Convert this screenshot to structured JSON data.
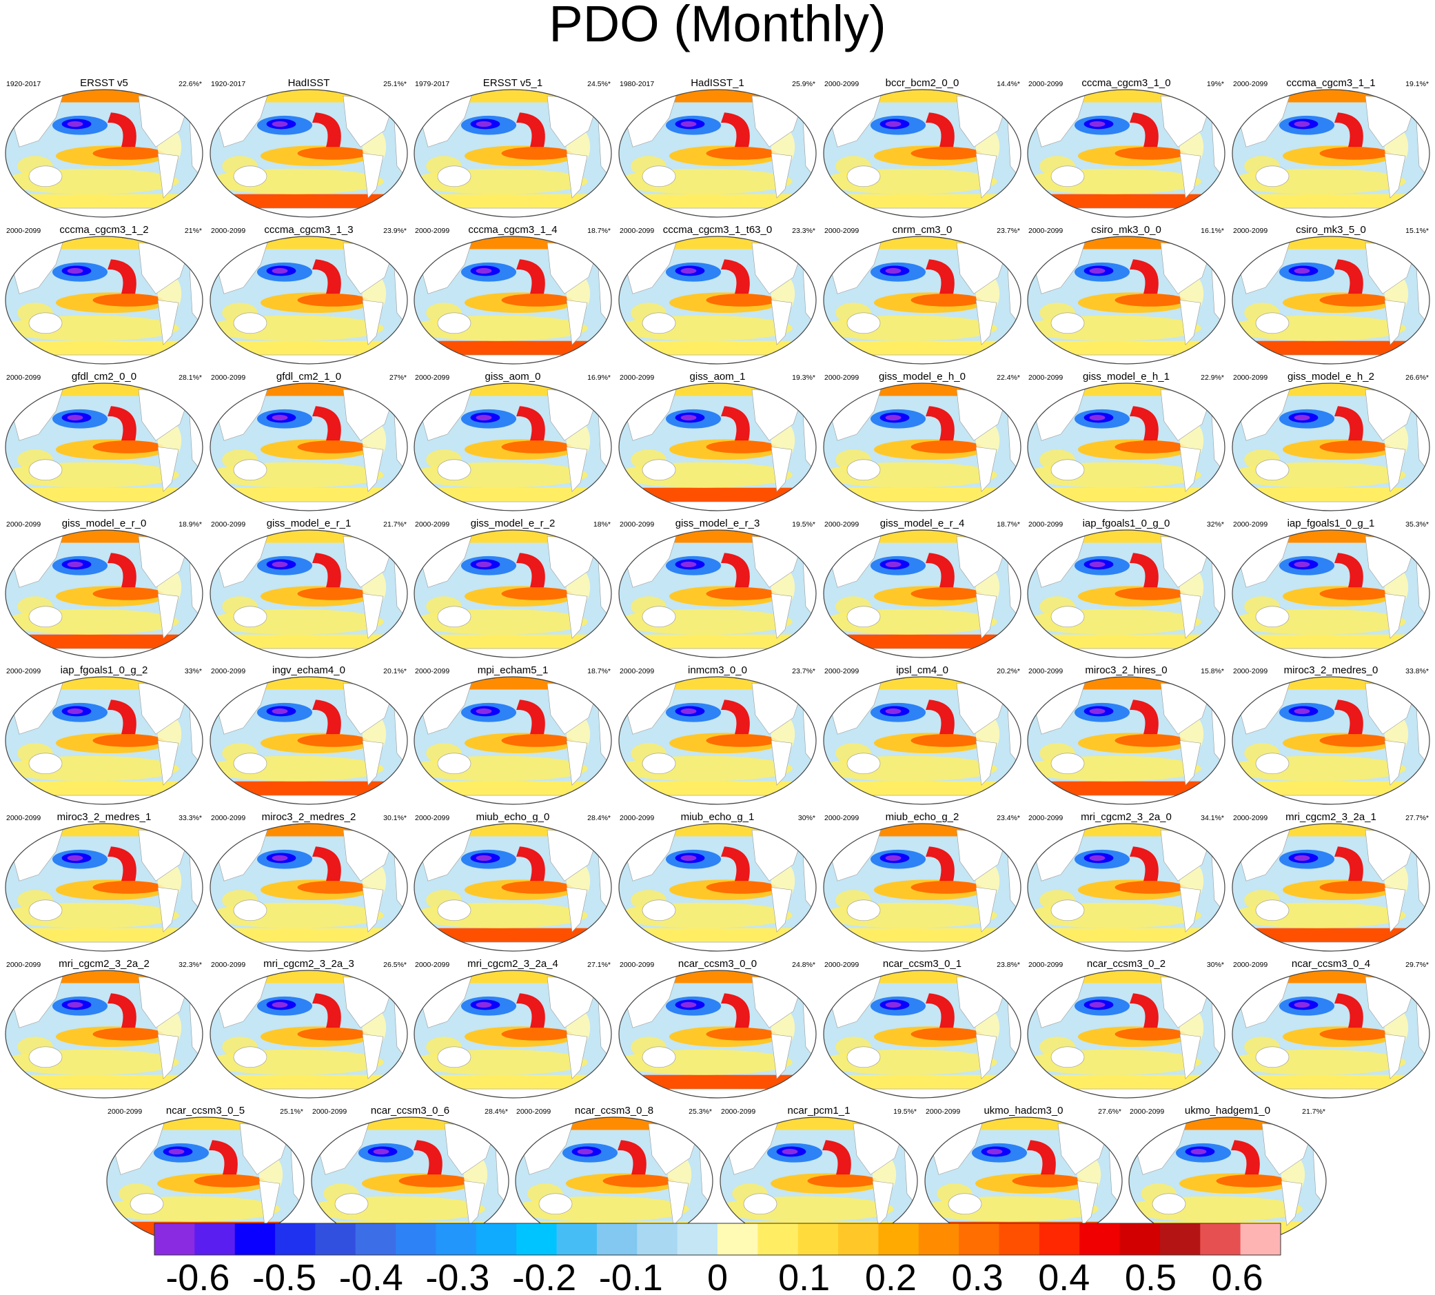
{
  "chart_data": {
    "type": "heatmap",
    "title": "PDO (Monthly)",
    "map_projection": "Robinson world map, Pacific-centered",
    "colorbar": {
      "labels": [
        "-0.6",
        "-0.5",
        "-0.4",
        "-0.3",
        "-0.2",
        "-0.1",
        "0",
        "0.1",
        "0.2",
        "0.3",
        "0.4",
        "0.5",
        "0.6"
      ],
      "range": [
        -0.65,
        0.65
      ],
      "colors": [
        "#8A2BE2",
        "#5A1EF0",
        "#0A00FF",
        "#1E32F0",
        "#3250E0",
        "#3C6EE8",
        "#2D82F5",
        "#2296FA",
        "#10AAFF",
        "#00C4FF",
        "#46BEF5",
        "#82C8F0",
        "#A8D8F2",
        "#C4E6F5",
        "#FFFAB4",
        "#FFEE64",
        "#FFDC3C",
        "#FFC828",
        "#FFAA00",
        "#FF8C00",
        "#FF6E00",
        "#FF5000",
        "#FF2800",
        "#F00000",
        "#D20000",
        "#B41414",
        "#E65050",
        "#FFB4B4"
      ]
    },
    "panels": [
      {
        "name": "ERSST v5",
        "period": "1920-2017",
        "pct": "22.6%*"
      },
      {
        "name": "HadISST",
        "period": "1920-2017",
        "pct": "25.1%*"
      },
      {
        "name": "ERSST v5_1",
        "period": "1979-2017",
        "pct": "24.5%*"
      },
      {
        "name": "HadISST_1",
        "period": "1980-2017",
        "pct": "25.9%*"
      },
      {
        "name": "bccr_bcm2_0_0",
        "period": "2000-2099",
        "pct": "14.4%*"
      },
      {
        "name": "cccma_cgcm3_1_0",
        "period": "2000-2099",
        "pct": "19%*"
      },
      {
        "name": "cccma_cgcm3_1_1",
        "period": "2000-2099",
        "pct": "19.1%*"
      },
      {
        "name": "cccma_cgcm3_1_2",
        "period": "2000-2099",
        "pct": "21%*"
      },
      {
        "name": "cccma_cgcm3_1_3",
        "period": "2000-2099",
        "pct": "23.9%*"
      },
      {
        "name": "cccma_cgcm3_1_4",
        "period": "2000-2099",
        "pct": "18.7%*"
      },
      {
        "name": "cccma_cgcm3_1_t63_0",
        "period": "2000-2099",
        "pct": "23.3%*"
      },
      {
        "name": "cnrm_cm3_0",
        "period": "2000-2099",
        "pct": "23.7%*"
      },
      {
        "name": "csiro_mk3_0_0",
        "period": "2000-2099",
        "pct": "16.1%*"
      },
      {
        "name": "csiro_mk3_5_0",
        "period": "2000-2099",
        "pct": "15.1%*"
      },
      {
        "name": "gfdl_cm2_0_0",
        "period": "2000-2099",
        "pct": "28.1%*"
      },
      {
        "name": "gfdl_cm2_1_0",
        "period": "2000-2099",
        "pct": "27%*"
      },
      {
        "name": "giss_aom_0",
        "period": "2000-2099",
        "pct": "16.9%*"
      },
      {
        "name": "giss_aom_1",
        "period": "2000-2099",
        "pct": "19.3%*"
      },
      {
        "name": "giss_model_e_h_0",
        "period": "2000-2099",
        "pct": "22.4%*"
      },
      {
        "name": "giss_model_e_h_1",
        "period": "2000-2099",
        "pct": "22.9%*"
      },
      {
        "name": "giss_model_e_h_2",
        "period": "2000-2099",
        "pct": "26.6%*"
      },
      {
        "name": "giss_model_e_r_0",
        "period": "2000-2099",
        "pct": "18.9%*"
      },
      {
        "name": "giss_model_e_r_1",
        "period": "2000-2099",
        "pct": "21.7%*"
      },
      {
        "name": "giss_model_e_r_2",
        "period": "2000-2099",
        "pct": "18%*"
      },
      {
        "name": "giss_model_e_r_3",
        "period": "2000-2099",
        "pct": "19.5%*"
      },
      {
        "name": "giss_model_e_r_4",
        "period": "2000-2099",
        "pct": "18.7%*"
      },
      {
        "name": "iap_fgoals1_0_g_0",
        "period": "2000-2099",
        "pct": "32%*"
      },
      {
        "name": "iap_fgoals1_0_g_1",
        "period": "2000-2099",
        "pct": "35.3%*"
      },
      {
        "name": "iap_fgoals1_0_g_2",
        "period": "2000-2099",
        "pct": "33%*"
      },
      {
        "name": "ingv_echam4_0",
        "period": "2000-2099",
        "pct": "20.1%*"
      },
      {
        "name": "mpi_echam5_1",
        "period": "2000-2099",
        "pct": "18.7%*"
      },
      {
        "name": "inmcm3_0_0",
        "period": "2000-2099",
        "pct": "23.7%*"
      },
      {
        "name": "ipsl_cm4_0",
        "period": "2000-2099",
        "pct": "20.2%*"
      },
      {
        "name": "miroc3_2_hires_0",
        "period": "2000-2099",
        "pct": "15.8%*"
      },
      {
        "name": "miroc3_2_medres_0",
        "period": "2000-2099",
        "pct": "33.8%*"
      },
      {
        "name": "miroc3_2_medres_1",
        "period": "2000-2099",
        "pct": "33.3%*"
      },
      {
        "name": "miroc3_2_medres_2",
        "period": "2000-2099",
        "pct": "30.1%*"
      },
      {
        "name": "miub_echo_g_0",
        "period": "2000-2099",
        "pct": "28.4%*"
      },
      {
        "name": "miub_echo_g_1",
        "period": "2000-2099",
        "pct": "30%*"
      },
      {
        "name": "miub_echo_g_2",
        "period": "2000-2099",
        "pct": "23.4%*"
      },
      {
        "name": "mri_cgcm2_3_2a_0",
        "period": "2000-2099",
        "pct": "34.1%*"
      },
      {
        "name": "mri_cgcm2_3_2a_1",
        "period": "2000-2099",
        "pct": "27.7%*"
      },
      {
        "name": "mri_cgcm2_3_2a_2",
        "period": "2000-2099",
        "pct": "32.3%*"
      },
      {
        "name": "mri_cgcm2_3_2a_3",
        "period": "2000-2099",
        "pct": "26.5%*"
      },
      {
        "name": "mri_cgcm2_3_2a_4",
        "period": "2000-2099",
        "pct": "27.1%*"
      },
      {
        "name": "ncar_ccsm3_0_0",
        "period": "2000-2099",
        "pct": "24.8%*"
      },
      {
        "name": "ncar_ccsm3_0_1",
        "period": "2000-2099",
        "pct": "23.8%*"
      },
      {
        "name": "ncar_ccsm3_0_2",
        "period": "2000-2099",
        "pct": "30%*"
      },
      {
        "name": "ncar_ccsm3_0_4",
        "period": "2000-2099",
        "pct": "29.7%*"
      },
      {
        "name": "ncar_ccsm3_0_5",
        "period": "2000-2099",
        "pct": "25.1%*"
      },
      {
        "name": "ncar_ccsm3_0_6",
        "period": "2000-2099",
        "pct": "28.4%*"
      },
      {
        "name": "ncar_ccsm3_0_8",
        "period": "2000-2099",
        "pct": "25.3%*"
      },
      {
        "name": "ncar_pcm1_1",
        "period": "2000-2099",
        "pct": "19.5%*"
      },
      {
        "name": "ukmo_hadcm3_0",
        "period": "2000-2099",
        "pct": "27.6%*"
      },
      {
        "name": "ukmo_hadgem1_0",
        "period": "2000-2099",
        "pct": "21.7%*"
      }
    ]
  }
}
